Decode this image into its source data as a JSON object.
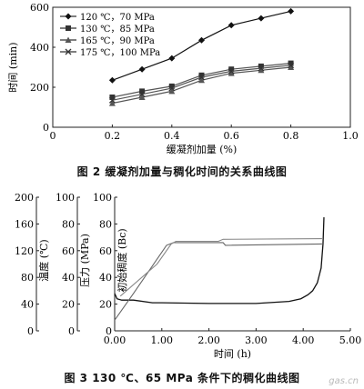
{
  "figure1": {
    "caption": "图 2   缓凝剂加量与稠化时间的关系曲线图",
    "chart_data": {
      "type": "line",
      "xlabel": "缓凝剂加量 (%)",
      "ylabel": "时间 (min)",
      "xlim": [
        0,
        1.0
      ],
      "ylim": [
        0,
        600
      ],
      "x_ticks": [
        "0",
        "0.2",
        "0.4",
        "0.6",
        "0.8",
        "1.0"
      ],
      "y_ticks": [
        "0",
        "200",
        "400",
        "600"
      ],
      "legend_position": "top-left",
      "series": [
        {
          "name": "120 ℃，70 MPa",
          "marker": "diamond",
          "x": [
            0.2,
            0.3,
            0.4,
            0.5,
            0.6,
            0.7,
            0.8
          ],
          "values": [
            235,
            290,
            345,
            435,
            510,
            545,
            580
          ]
        },
        {
          "name": "130 ℃，85 MPa",
          "marker": "square",
          "x": [
            0.2,
            0.3,
            0.4,
            0.5,
            0.6,
            0.7,
            0.8
          ],
          "values": [
            150,
            180,
            205,
            260,
            290,
            305,
            320
          ]
        },
        {
          "name": "165 ℃，90 MPa",
          "marker": "triangle",
          "x": [
            0.2,
            0.3,
            0.4,
            0.5,
            0.6,
            0.7,
            0.8
          ],
          "values": [
            120,
            150,
            180,
            235,
            270,
            285,
            300
          ]
        },
        {
          "name": "175 ℃，100 MPa",
          "marker": "x",
          "x": [
            0.2,
            0.3,
            0.4,
            0.5,
            0.6,
            0.7,
            0.8
          ],
          "values": [
            135,
            165,
            195,
            250,
            280,
            295,
            310
          ]
        }
      ]
    }
  },
  "figure2": {
    "caption": "图 3   130 ℃、65 MPa 条件下的稠化曲线图",
    "chart_data": {
      "type": "line",
      "xlabel": "时间 (h)",
      "xlim": [
        0,
        5
      ],
      "x_ticks": [
        "0.00",
        "1.00",
        "2.00",
        "3.00",
        "4.00",
        "5.00"
      ],
      "axes": [
        {
          "label": "温度 (℃)",
          "range": [
            0,
            200
          ],
          "ticks": [
            "0",
            "40",
            "80",
            "120",
            "160",
            "200"
          ]
        },
        {
          "label": "压力 (MPa)",
          "range": [
            0,
            100
          ],
          "ticks": [
            "0",
            "20",
            "40",
            "60",
            "80",
            "100"
          ]
        },
        {
          "label": "初始稠度 (Bc)",
          "range": [
            0,
            100
          ],
          "ticks": [
            "0",
            "20",
            "40",
            "60",
            "80",
            "100"
          ]
        }
      ],
      "series": [
        {
          "axis": 2,
          "x": [
            0,
            0.05,
            0.15,
            0.4,
            0.8,
            1.0,
            2.0,
            3.0,
            3.7,
            3.95,
            4.1,
            4.2,
            4.3,
            4.38,
            4.42,
            4.44
          ],
          "values": [
            28,
            24,
            23,
            23,
            21,
            21,
            20.5,
            20.5,
            22,
            24,
            27,
            30,
            36,
            47,
            65,
            85
          ]
        },
        {
          "axis": 1,
          "x": [
            0,
            0.4,
            1.1,
            1.25,
            2.3,
            2.35,
            4.4
          ],
          "values": [
            8,
            28,
            64,
            66,
            66,
            64,
            65
          ]
        },
        {
          "axis": 1,
          "x": [
            0.12,
            0.9,
            1.2,
            1.3,
            2.2,
            2.3,
            4.4
          ],
          "values": [
            26,
            50,
            65,
            67,
            67,
            68.5,
            69
          ]
        }
      ]
    }
  },
  "watermark": "gas.cn"
}
